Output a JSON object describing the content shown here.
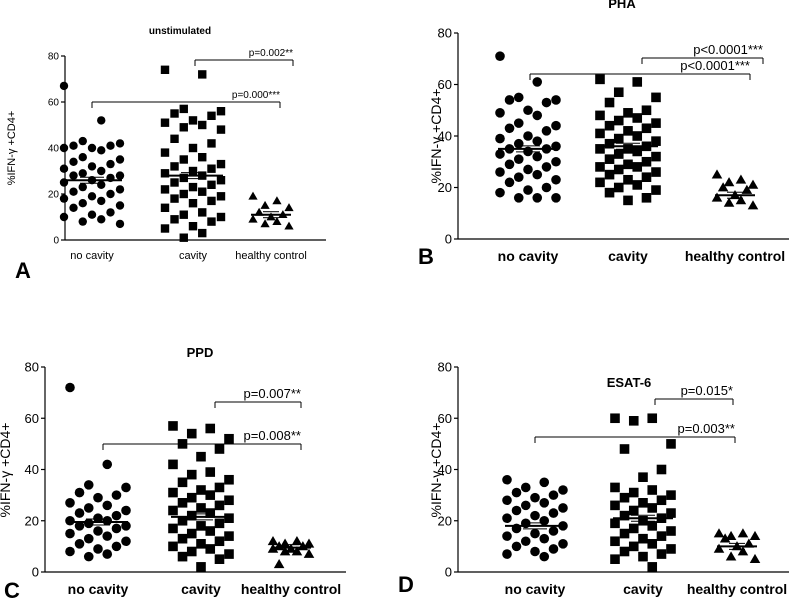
{
  "figure": {
    "ylabel": "%IFN-γ +CD4+",
    "categories": [
      "no cavity",
      "cavity",
      "healthy control"
    ]
  },
  "chart_data": [
    {
      "type": "scatter",
      "panel_label": "A",
      "title": "unstimulated",
      "xlabel": "",
      "ylabel": "%IFN-γ +CD4+",
      "ylim": [
        0,
        80
      ],
      "yticks": [
        0,
        20,
        40,
        60,
        80
      ],
      "categories": [
        "no cavity",
        "cavity",
        "healthy control"
      ],
      "series": [
        {
          "name": "no cavity",
          "marker": "circle",
          "mean": 26,
          "values": [
            67,
            52,
            43,
            42,
            41,
            41,
            40,
            40,
            39,
            36,
            35,
            34,
            33,
            32,
            31,
            30,
            29,
            28,
            28,
            27,
            26,
            25,
            24,
            23,
            22,
            21,
            20,
            19,
            18,
            17,
            16,
            15,
            14,
            12,
            11,
            10,
            9,
            8,
            7
          ]
        },
        {
          "name": "cavity",
          "marker": "square",
          "mean": 28,
          "values": [
            74,
            72,
            57,
            56,
            55,
            54,
            52,
            51,
            50,
            49,
            48,
            44,
            42,
            40,
            38,
            36,
            35,
            33,
            32,
            31,
            30,
            29,
            28,
            27,
            26,
            25,
            24,
            23,
            22,
            21,
            20,
            19,
            18,
            17,
            16,
            14,
            12,
            11,
            10,
            9,
            8,
            6,
            5,
            3,
            1
          ]
        },
        {
          "name": "healthy control",
          "marker": "triangle",
          "mean": 11,
          "values": [
            19,
            17,
            15,
            14,
            12,
            11,
            10,
            9,
            8,
            7,
            6
          ]
        }
      ],
      "annotations": [
        {
          "text": "p=0.002**",
          "from": "cavity",
          "to": "healthy control",
          "level": 1
        },
        {
          "text": "p=0.000***",
          "from": "no cavity",
          "to": "healthy control",
          "level": 0
        }
      ]
    },
    {
      "type": "scatter",
      "panel_label": "B",
      "title": "PHA",
      "xlabel": "",
      "ylabel": "%IFN-γ +CD4+",
      "ylim": [
        0,
        80
      ],
      "yticks": [
        0,
        20,
        40,
        60,
        80
      ],
      "categories": [
        "no cavity",
        "cavity",
        "healthy control"
      ],
      "series": [
        {
          "name": "no cavity",
          "marker": "circle",
          "mean": 35,
          "values": [
            71,
            61,
            55,
            54,
            54,
            53,
            50,
            49,
            48,
            45,
            44,
            43,
            42,
            40,
            39,
            38,
            37,
            36,
            35,
            35,
            34,
            33,
            32,
            31,
            30,
            29,
            28,
            27,
            26,
            25,
            24,
            23,
            22,
            20,
            19,
            18,
            16,
            16,
            16
          ]
        },
        {
          "name": "cavity",
          "marker": "square",
          "mean": 36,
          "values": [
            62,
            61,
            57,
            55,
            53,
            50,
            49,
            48,
            47,
            46,
            45,
            44,
            43,
            42,
            41,
            40,
            39,
            38,
            37,
            36,
            35,
            35,
            34,
            33,
            32,
            31,
            30,
            29,
            28,
            28,
            27,
            26,
            25,
            24,
            23,
            22,
            21,
            20,
            19,
            18,
            16,
            15
          ]
        },
        {
          "name": "healthy control",
          "marker": "triangle",
          "mean": 17,
          "values": [
            25,
            23,
            22,
            21,
            20,
            19,
            17,
            16,
            15,
            14,
            13
          ]
        }
      ],
      "annotations": [
        {
          "text": "p<0.0001***",
          "from": "cavity",
          "to": "healthy control",
          "level": 1
        },
        {
          "text": "p<0.0001***",
          "from": "no cavity",
          "to": "healthy control",
          "level": 0
        }
      ]
    },
    {
      "type": "scatter",
      "panel_label": "C",
      "title": "PPD",
      "xlabel": "",
      "ylabel": "%IFN-γ +CD4+",
      "ylim": [
        0,
        80
      ],
      "yticks": [
        0,
        20,
        40,
        60,
        80
      ],
      "categories": [
        "no cavity",
        "cavity",
        "healthy control"
      ],
      "series": [
        {
          "name": "no cavity",
          "marker": "circle",
          "mean": 19.5,
          "values": [
            72,
            42,
            34,
            33,
            31,
            30,
            29,
            27,
            26,
            25,
            24,
            23,
            22,
            21,
            20,
            20,
            19,
            18,
            18,
            17,
            16,
            15,
            14,
            13,
            12,
            11,
            10,
            9,
            8,
            7,
            6
          ]
        },
        {
          "name": "cavity",
          "marker": "square",
          "mean": 21.5,
          "values": [
            57,
            56,
            54,
            52,
            50,
            48,
            45,
            42,
            39,
            38,
            36,
            35,
            33,
            32,
            31,
            30,
            29,
            28,
            27,
            26,
            25,
            24,
            23,
            22,
            21,
            20,
            19,
            18,
            17,
            16,
            15,
            14,
            13,
            12,
            11,
            10,
            9,
            8,
            7,
            6,
            5,
            2
          ]
        },
        {
          "name": "healthy control",
          "marker": "triangle",
          "mean": 9.5,
          "values": [
            12,
            12,
            11,
            11,
            10,
            10,
            9,
            9,
            8,
            8,
            7,
            3
          ]
        }
      ],
      "annotations": [
        {
          "text": "p=0.007**",
          "from": "cavity",
          "to": "healthy control",
          "level": 1
        },
        {
          "text": "p=0.008**",
          "from": "no cavity",
          "to": "healthy control",
          "level": 0
        }
      ]
    },
    {
      "type": "scatter",
      "panel_label": "D",
      "title": "ESAT-6",
      "xlabel": "",
      "ylabel": "%IFN-γ +CD4+",
      "ylim": [
        0,
        80
      ],
      "yticks": [
        0,
        20,
        40,
        60,
        80
      ],
      "categories": [
        "no cavity",
        "cavity",
        "healthy control"
      ],
      "series": [
        {
          "name": "no cavity",
          "marker": "circle",
          "mean": 18,
          "values": [
            36,
            35,
            33,
            32,
            31,
            30,
            29,
            28,
            27,
            26,
            25,
            24,
            23,
            22,
            21,
            20,
            19,
            18,
            17,
            16,
            15,
            14,
            13,
            12,
            11,
            10,
            9,
            8,
            7,
            6
          ]
        },
        {
          "name": "cavity",
          "marker": "square",
          "mean": 21,
          "values": [
            60,
            60,
            59,
            50,
            48,
            40,
            37,
            33,
            32,
            31,
            30,
            29,
            28,
            27,
            26,
            25,
            24,
            23,
            22,
            21,
            20,
            19,
            18,
            17,
            16,
            15,
            14,
            13,
            12,
            11,
            10,
            9,
            8,
            7,
            6,
            5,
            2
          ]
        },
        {
          "name": "healthy control",
          "marker": "triangle",
          "mean": 10,
          "values": [
            15,
            15,
            14,
            14,
            13,
            11,
            10,
            9,
            8,
            6,
            5
          ]
        }
      ],
      "annotations": [
        {
          "text": "p=0.015*",
          "from": "cavity",
          "to": "healthy control",
          "level": 1
        },
        {
          "text": "p=0.003**",
          "from": "no cavity",
          "to": "healthy control",
          "level": 0
        }
      ]
    }
  ]
}
